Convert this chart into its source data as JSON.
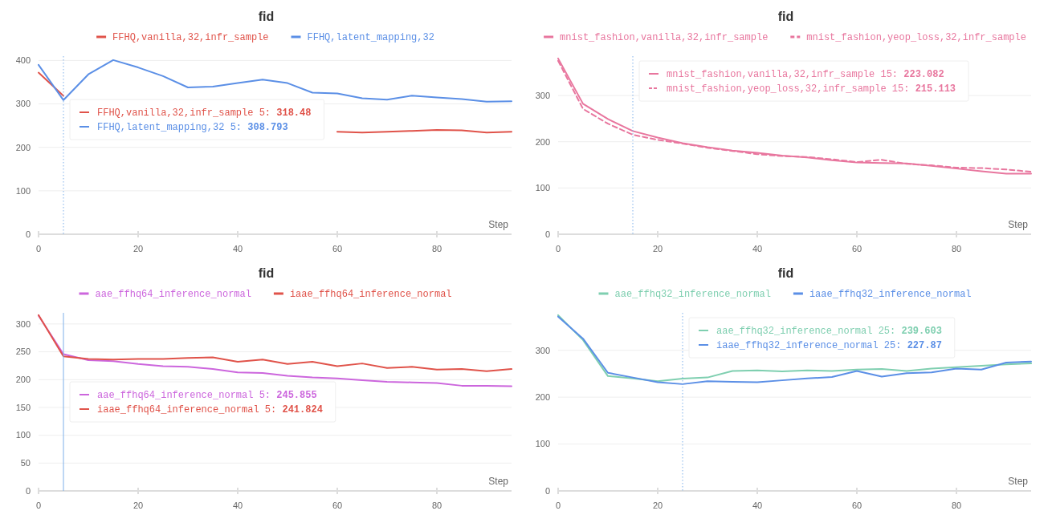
{
  "chart_data": [
    {
      "type": "line",
      "title": "fid",
      "xlabel": "Step",
      "x": [
        0,
        5,
        10,
        15,
        20,
        25,
        30,
        35,
        40,
        45,
        50,
        55,
        60,
        65,
        70,
        75,
        80,
        85,
        90,
        95
      ],
      "xlim": [
        0,
        95
      ],
      "xticks": [
        0,
        20,
        40,
        60,
        80
      ],
      "ylim": [
        0,
        410
      ],
      "yticks": [
        0,
        100,
        200,
        300,
        400
      ],
      "grid": "y",
      "legend": "top",
      "series": [
        {
          "name": "FFHQ,vanilla,32,infr_sample",
          "color": "#e0534a",
          "values": [
            372,
            318.48,
            null,
            null,
            null,
            null,
            null,
            null,
            null,
            null,
            null,
            null,
            236,
            234,
            236,
            238,
            240,
            239,
            234,
            236
          ]
        },
        {
          "name": "FFHQ,latent_mapping,32",
          "color": "#5b8fe6",
          "values": [
            390,
            308.793,
            368,
            401,
            384,
            364,
            338,
            340,
            348,
            356,
            348,
            326,
            324,
            313,
            310,
            319,
            315,
            311,
            305,
            306
          ]
        }
      ],
      "ref_lines": [
        {
          "axis": "x",
          "value": 5,
          "color": "#7fb0ea",
          "line_style": "dotted"
        }
      ],
      "annotations": [
        "FFHQ,vanilla,32,infr_sample 5: 318.48",
        "FFHQ,latent_mapping,32 5: 308.793"
      ]
    },
    {
      "type": "line",
      "title": "fid",
      "xlabel": "Step",
      "x": [
        0,
        5,
        10,
        15,
        20,
        25,
        30,
        35,
        40,
        45,
        50,
        55,
        60,
        65,
        70,
        75,
        80,
        85,
        90,
        95
      ],
      "xlim": [
        0,
        95
      ],
      "xticks": [
        0,
        20,
        40,
        60,
        80
      ],
      "ylim": [
        0,
        385
      ],
      "yticks": [
        0,
        100,
        200,
        300
      ],
      "grid": "y",
      "legend": "top",
      "series": [
        {
          "name": "mnist_fashion,vanilla,32,infr_sample",
          "color": "#e8769e",
          "line_style": "solid",
          "values": [
            380,
            282,
            249,
            223.082,
            209,
            197,
            188,
            181,
            176,
            170,
            166,
            160,
            155,
            154,
            153,
            148,
            142,
            136,
            131,
            131
          ]
        },
        {
          "name": "mnist_fashion,yeop_loss,32,infr_sample",
          "color": "#e8769e",
          "line_style": "dashed",
          "values": [
            375,
            271,
            239,
            215.113,
            204,
            196,
            187,
            180,
            173,
            169,
            167,
            162,
            156,
            161,
            152,
            149,
            144,
            143,
            140,
            135
          ]
        }
      ],
      "ref_lines": [
        {
          "axis": "x",
          "value": 15,
          "color": "#7fb0ea",
          "line_style": "dotted"
        }
      ],
      "annotations": [
        "mnist_fashion,vanilla,32,infr_sample 15: 223.082",
        "mnist_fashion,yeop_loss,32,infr_sample 15: 215.113"
      ]
    },
    {
      "type": "line",
      "title": "fid",
      "xlabel": "Step",
      "x": [
        0,
        5,
        10,
        15,
        20,
        25,
        30,
        35,
        40,
        45,
        50,
        55,
        60,
        65,
        70,
        75,
        80,
        85,
        90,
        95
      ],
      "xlim": [
        0,
        95
      ],
      "xticks": [
        0,
        20,
        40,
        60,
        80
      ],
      "ylim": [
        0,
        320
      ],
      "yticks": [
        0,
        50,
        100,
        150,
        200,
        250,
        300
      ],
      "grid": "y",
      "legend": "top",
      "series": [
        {
          "name": "aae_ffhq64_inference_normal",
          "color": "#cc66dd",
          "values": [
            315,
            245.855,
            235,
            233,
            228,
            224,
            223,
            219,
            213,
            212,
            207,
            204,
            202,
            199,
            196,
            195,
            194,
            189,
            189,
            188
          ]
        },
        {
          "name": "iaae_ffhq64_inference_normal",
          "color": "#e0534a",
          "values": [
            316,
            241.824,
            237,
            236,
            237,
            237,
            239,
            240,
            232,
            236,
            228,
            232,
            224,
            229,
            221,
            223,
            218,
            219,
            215,
            219
          ]
        }
      ],
      "ref_lines": [
        {
          "axis": "x",
          "value": 5,
          "color": "#7fb0ea",
          "line_style": "solid"
        }
      ],
      "annotations": [
        "aae_ffhq64_inference_normal 5: 245.855",
        "iaae_ffhq64_inference_normal 5: 241.824"
      ]
    },
    {
      "type": "line",
      "title": "fid",
      "xlabel": "Step",
      "x": [
        0,
        5,
        10,
        15,
        20,
        25,
        30,
        35,
        40,
        45,
        50,
        55,
        60,
        65,
        70,
        75,
        80,
        85,
        90,
        95
      ],
      "xlim": [
        0,
        95
      ],
      "xticks": [
        0,
        20,
        40,
        60,
        80
      ],
      "ylim": [
        0,
        380
      ],
      "yticks": [
        0,
        100,
        200,
        300
      ],
      "grid": "y",
      "legend": "top",
      "series": [
        {
          "name": "aae_ffhq32_inference_normal",
          "color": "#7fcfb0",
          "values": [
            375,
            322,
            245,
            240,
            234,
            239.603,
            242,
            256,
            257,
            255,
            257,
            256,
            259,
            260,
            256,
            261,
            264,
            267,
            270,
            272
          ]
        },
        {
          "name": "iaae_ffhq32_inference_normal",
          "color": "#5b8fe6",
          "values": [
            372,
            325,
            252,
            242,
            232,
            227.87,
            234,
            233,
            232,
            236,
            240,
            243,
            256,
            244,
            251,
            253,
            261,
            259,
            274,
            276
          ]
        }
      ],
      "ref_lines": [
        {
          "axis": "x",
          "value": 25,
          "color": "#7fb0ea",
          "line_style": "dotted"
        }
      ],
      "annotations": [
        "aae_ffhq32_inference_normal 25: 239.603",
        "iaae_ffhq32_inference_normal 25: 227.87"
      ]
    }
  ]
}
